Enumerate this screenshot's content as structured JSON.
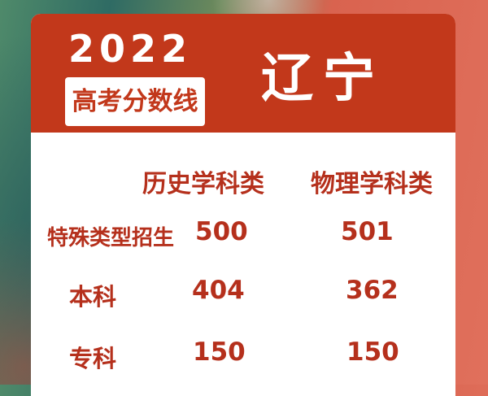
{
  "header": {
    "year": "2022",
    "subtitle": "高考分数线",
    "province": "辽宁"
  },
  "table": {
    "columns": [
      "历史学科类",
      "物理学科类"
    ],
    "rows": [
      {
        "label": "特殊类型招生",
        "values": [
          "500",
          "501"
        ]
      },
      {
        "label": "本科",
        "values": [
          "404",
          "362"
        ]
      },
      {
        "label": "专科",
        "values": [
          "150",
          "150"
        ]
      }
    ]
  },
  "colors": {
    "accent": "#c2381b",
    "text": "#b5301c"
  }
}
